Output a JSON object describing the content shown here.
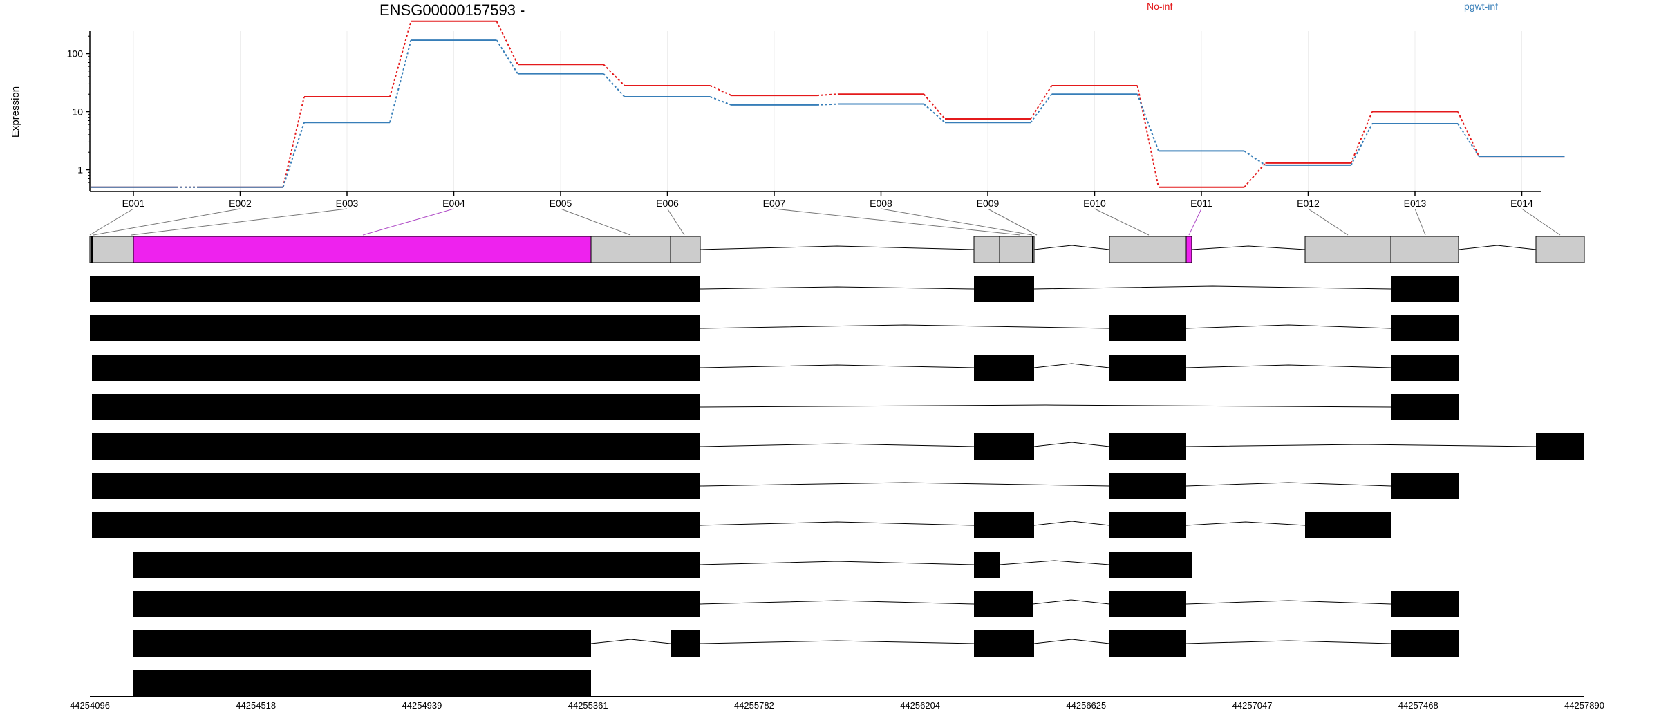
{
  "chart_data": {
    "type": "line",
    "title": "ENSG00000157593 -",
    "ylabel": "Expression",
    "y_scale": "log",
    "y_ticks": [
      "1",
      "10",
      "100"
    ],
    "grid": true,
    "legend_placement": "top",
    "categories": [
      "E001",
      "E002",
      "E003",
      "E004",
      "E005",
      "E006",
      "E007",
      "E008",
      "E009",
      "E010",
      "E011",
      "E012",
      "E013",
      "E014"
    ],
    "series": [
      {
        "name": "No-inf",
        "color": "#e41a1c",
        "values": [
          0.5,
          0.5,
          18,
          360,
          65,
          28,
          19,
          20,
          7.5,
          28,
          0.5,
          1.3,
          10,
          1.7
        ]
      },
      {
        "name": "pgwt-inf",
        "color": "#377eb8",
        "values": [
          0.5,
          0.5,
          6.5,
          170,
          45,
          18,
          13,
          13.5,
          6.5,
          20,
          2.1,
          1.2,
          6.2,
          1.7
        ]
      }
    ],
    "genomic_axis": {
      "ticks": [
        "44254096",
        "44254518",
        "44254939",
        "44255361",
        "44255782",
        "44256204",
        "44256625",
        "44257047",
        "44257468",
        "44257890"
      ]
    },
    "gene_model": {
      "exon_fill": "#cccccc",
      "highlight_fill": "#ee22ee",
      "highlighted_bins": [
        "E004",
        "E011"
      ]
    },
    "transcripts_count": 11
  }
}
